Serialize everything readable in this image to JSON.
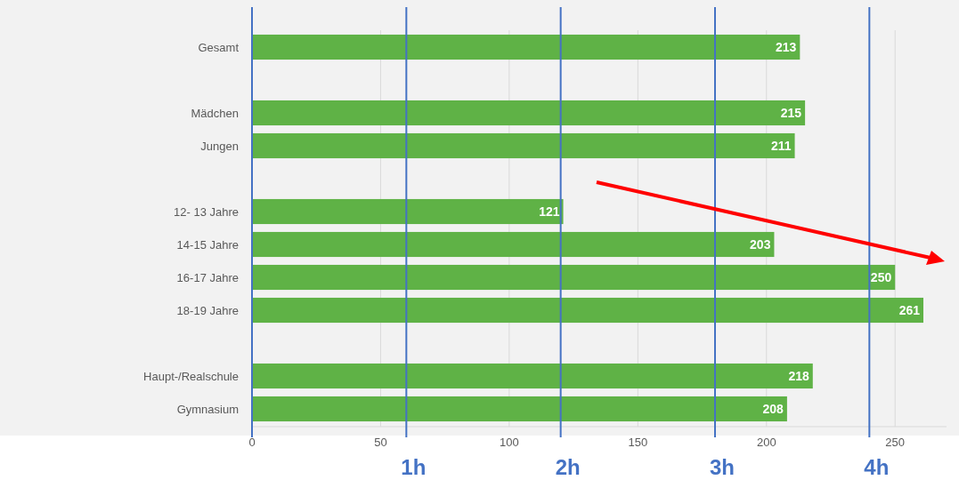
{
  "chart_data": {
    "type": "bar",
    "orientation": "horizontal",
    "categories": [
      "Gesamt",
      null,
      "Mädchen",
      "Jungen",
      null,
      "12- 13 Jahre",
      "14-15 Jahre",
      "16-17 Jahre",
      "18-19 Jahre",
      null,
      "Haupt-/Realschule",
      "Gymnasium"
    ],
    "values": [
      213,
      null,
      215,
      211,
      null,
      121,
      203,
      250,
      261,
      null,
      218,
      208
    ],
    "color": "#5fb246",
    "data_labels": true,
    "xlim": [
      0,
      270
    ],
    "xticks": [
      0,
      50,
      100,
      150,
      200,
      250
    ],
    "grid": "x",
    "ref_lines": [
      {
        "axis": "x",
        "value": 0,
        "label": null,
        "color": "#4472c4"
      },
      {
        "axis": "x",
        "value": 60,
        "label": "1h",
        "color": "#4472c4"
      },
      {
        "axis": "x",
        "value": 120,
        "label": "2h",
        "color": "#4472c4"
      },
      {
        "axis": "x",
        "value": 180,
        "label": "3h",
        "color": "#4472c4"
      },
      {
        "axis": "x",
        "value": 240,
        "label": "4h",
        "color": "#4472c4"
      }
    ]
  }
}
